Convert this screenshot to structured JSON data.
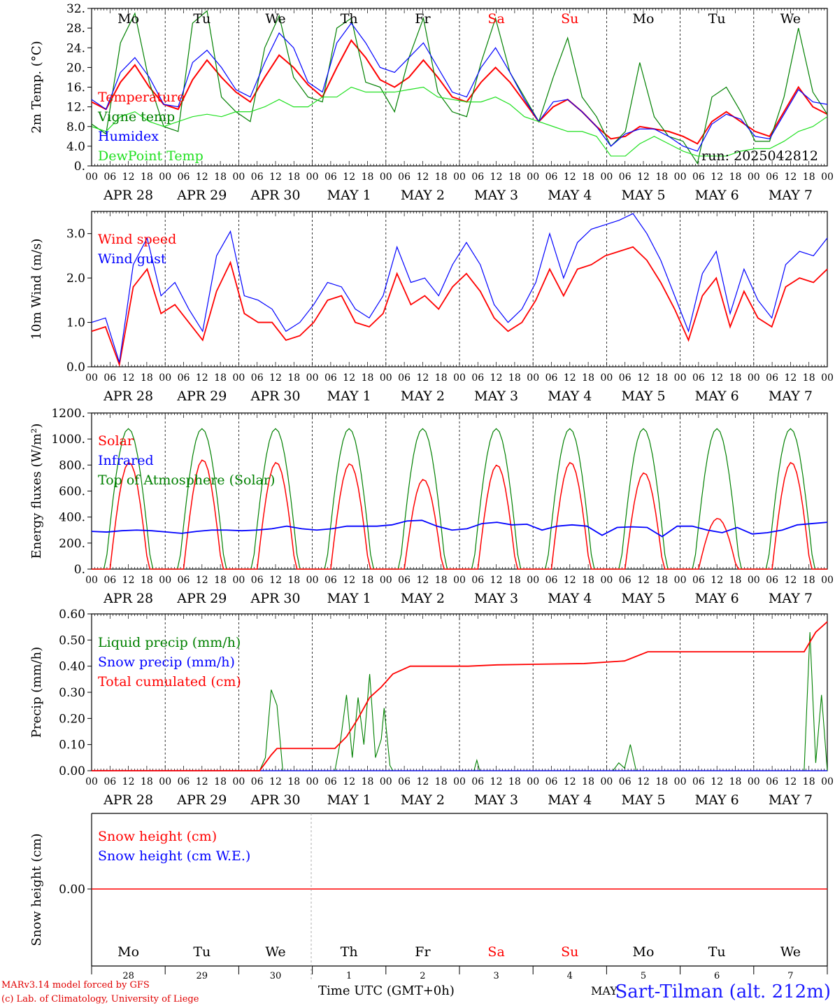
{
  "footer": {
    "model_line": "MARv3.14 model forced by GFS",
    "lab_line": "(c) Lab. of Climatology, University of Liege",
    "time_label": "Time UTC (GMT+0h)",
    "station": "Sart-Tilman (alt. 212m)",
    "month": "MAY"
  },
  "colors": {
    "red": "#ff0000",
    "green": "#008000",
    "blue": "#0000ff",
    "lightgreen": "#20e020",
    "weekend": "#ff0000"
  },
  "chart_data": [
    {
      "id": "temp",
      "type": "line",
      "ylabel": "2m Temp. (°C)",
      "ylim": [
        0,
        32
      ],
      "yticks": [
        "0.",
        "4.0",
        "8.0",
        "12.",
        "16.",
        "20.",
        "24.",
        "28.",
        "32."
      ],
      "days_top": [
        "Mo",
        "Tu",
        "We",
        "Th",
        "Fr",
        "Sa",
        "Su",
        "Mo",
        "Tu",
        "We"
      ],
      "weekend_days": [
        5,
        6
      ],
      "run_label": "run: 2025042812",
      "x_hour_ticks": [
        "00",
        "06",
        "12",
        "18"
      ],
      "date_labels": [
        "APR 28",
        "APR 29",
        "APR 30",
        "MAY  1",
        "MAY  2",
        "MAY  3",
        "MAY  4",
        "MAY  5",
        "MAY  6",
        "MAY  7"
      ],
      "legend": [
        "Temperature",
        "Vigne temp",
        "Humidex",
        "DewPoint Temp"
      ],
      "x_hours_step": 6,
      "series": [
        {
          "name": "Temperature",
          "color": "red",
          "values": [
            13,
            11.5,
            17,
            20.5,
            16,
            12.5,
            11.5,
            17.5,
            21.5,
            18,
            15,
            13,
            18,
            22.5,
            20,
            16.5,
            14,
            20,
            25.5,
            22,
            17.5,
            16,
            18,
            21.5,
            18,
            14,
            13,
            17,
            20,
            17,
            13,
            9,
            12,
            13.5,
            11,
            8,
            5.5,
            6,
            8,
            7.5,
            7,
            6,
            4.5,
            9,
            11,
            9,
            7,
            6,
            11,
            16,
            12,
            10.5
          ]
        },
        {
          "name": "Vigne temp",
          "color": "green",
          "values": [
            8.5,
            6.5,
            25,
            31,
            17,
            8,
            7,
            29,
            31.5,
            14,
            11,
            9,
            24,
            30.5,
            18,
            14,
            13,
            28,
            30,
            17,
            16,
            11,
            22,
            30,
            15,
            11,
            10,
            21,
            30,
            19,
            14,
            9,
            18,
            26,
            14,
            10,
            4,
            7,
            21,
            10,
            6,
            5,
            0.5,
            14,
            16,
            11,
            5,
            5,
            14,
            28,
            15,
            10.5
          ]
        },
        {
          "name": "Humidex",
          "color": "blue",
          "values": [
            13.5,
            11.5,
            19,
            22,
            18,
            12.5,
            12,
            21,
            23.5,
            20,
            15.5,
            14,
            21,
            27,
            24,
            17,
            15,
            25,
            29,
            25,
            20,
            19,
            22,
            25,
            20,
            15,
            14,
            20,
            24,
            19,
            13.5,
            9,
            13,
            13.5,
            11,
            8,
            4,
            6.5,
            7.5,
            7.5,
            6,
            4,
            3,
            8.5,
            10.5,
            9.5,
            6,
            5.5,
            10.5,
            15.5,
            13,
            12.5
          ]
        },
        {
          "name": "DewPoint Temp",
          "color": "lightgreen",
          "values": [
            8,
            7,
            10,
            11,
            9,
            8,
            9,
            10,
            10.5,
            10,
            11,
            11,
            12,
            13.5,
            12,
            12,
            14,
            14,
            16,
            15,
            15,
            15,
            15.5,
            16,
            14,
            13.5,
            13,
            13,
            14,
            12.5,
            10,
            9,
            8,
            7,
            7,
            6,
            2,
            2,
            4.5,
            6,
            4.5,
            3,
            2,
            2,
            2,
            3,
            3.5,
            3.5,
            5,
            7,
            8,
            10
          ]
        }
      ]
    },
    {
      "id": "wind",
      "type": "line",
      "ylabel": "10m Wind (m/s)",
      "ylim": [
        0,
        3.5
      ],
      "yticks": [
        "0.0",
        "1.0",
        "2.0",
        "3.0"
      ],
      "x_hour_ticks": [
        "00",
        "06",
        "12",
        "18"
      ],
      "date_labels": [
        "APR 28",
        "APR 29",
        "APR 30",
        "MAY  1",
        "MAY  2",
        "MAY  3",
        "MAY  4",
        "MAY  5",
        "MAY  6",
        "MAY  7"
      ],
      "legend": [
        "Wind speed",
        "Wind gust"
      ],
      "x_hours_step": 6,
      "series": [
        {
          "name": "Wind speed",
          "color": "red",
          "values": [
            0.8,
            0.9,
            0.05,
            1.8,
            2.2,
            1.2,
            1.4,
            1.0,
            0.6,
            1.7,
            2.35,
            1.2,
            1.0,
            1.0,
            0.6,
            0.7,
            1.0,
            1.5,
            1.6,
            1.0,
            0.9,
            1.2,
            2.1,
            1.4,
            1.6,
            1.3,
            1.8,
            2.1,
            1.7,
            1.1,
            0.8,
            1.0,
            1.5,
            2.2,
            1.6,
            2.2,
            2.3,
            2.5,
            2.6,
            2.7,
            2.4,
            1.9,
            1.3,
            0.6,
            1.6,
            2.0,
            0.9,
            1.7,
            1.1,
            0.9,
            1.8,
            2.0,
            1.9,
            2.2
          ]
        },
        {
          "name": "Wind gust",
          "color": "blue",
          "values": [
            1.0,
            1.1,
            0.1,
            2.3,
            2.9,
            1.6,
            1.9,
            1.3,
            0.8,
            2.5,
            3.05,
            1.6,
            1.5,
            1.3,
            0.8,
            1.0,
            1.4,
            1.9,
            1.8,
            1.3,
            1.1,
            1.6,
            2.7,
            1.9,
            2.0,
            1.6,
            2.3,
            2.8,
            2.3,
            1.4,
            1.0,
            1.3,
            1.9,
            3.0,
            2.0,
            2.8,
            3.1,
            3.2,
            3.3,
            3.45,
            3.0,
            2.4,
            1.6,
            0.8,
            2.1,
            2.6,
            1.2,
            2.2,
            1.5,
            1.1,
            2.3,
            2.6,
            2.5,
            2.9
          ]
        }
      ]
    },
    {
      "id": "energy",
      "type": "line",
      "ylabel": "Energy fluxes (W/m²)",
      "ylim": [
        0,
        1200
      ],
      "yticks": [
        "0.",
        "200.",
        "400.",
        "600.",
        "800.",
        "1000.",
        "1200."
      ],
      "x_hour_ticks": [
        "00",
        "06",
        "12",
        "18"
      ],
      "date_labels": [
        "APR 28",
        "APR 29",
        "APR 30",
        "MAY  1",
        "MAY  2",
        "MAY  3",
        "MAY  4",
        "MAY  5",
        "MAY  6",
        "MAY  7"
      ],
      "legend": [
        "Solar",
        "Infrared",
        "Top of Atmosphere (Solar)"
      ],
      "solar_peaks": [
        820,
        840,
        820,
        810,
        690,
        800,
        820,
        740,
        390,
        820
      ],
      "toa_peak": 1080,
      "infrared_values": [
        290,
        285,
        295,
        300,
        295,
        285,
        275,
        290,
        300,
        300,
        295,
        300,
        310,
        330,
        310,
        300,
        310,
        330,
        330,
        330,
        340,
        370,
        375,
        330,
        300,
        310,
        350,
        360,
        340,
        345,
        300,
        330,
        340,
        330,
        260,
        320,
        325,
        320,
        250,
        330,
        330,
        300,
        280,
        320,
        270,
        280,
        300,
        340,
        350,
        360
      ]
    },
    {
      "id": "precip",
      "type": "line",
      "ylabel": "Precip (mm/h)",
      "ylim": [
        0,
        0.6
      ],
      "yticks": [
        "0.00",
        "0.10",
        "0.20",
        "0.30",
        "0.40",
        "0.50",
        "0.60"
      ],
      "x_hour_ticks": [
        "00",
        "06",
        "12",
        "18"
      ],
      "date_labels": [
        "APR 28",
        "APR 29",
        "APR 30",
        "MAY  1",
        "MAY  2",
        "MAY  3",
        "MAY  4",
        "MAY  5",
        "MAY  6",
        "MAY  7"
      ],
      "legend": [
        "Liquid precip (mm/h)",
        "Snow precip (mm/h)",
        "Total cumulated (cm)"
      ],
      "liquid_points": [
        [
          0,
          0
        ],
        [
          58,
          0
        ],
        [
          60,
          0.05
        ],
        [
          62,
          0.31
        ],
        [
          64,
          0.25
        ],
        [
          66,
          0
        ],
        [
          84,
          0
        ],
        [
          86,
          0.12
        ],
        [
          88,
          0.29
        ],
        [
          90,
          0.05
        ],
        [
          92,
          0.28
        ],
        [
          94,
          0.1
        ],
        [
          96,
          0.37
        ],
        [
          98,
          0.05
        ],
        [
          100,
          0.12
        ],
        [
          101,
          0.24
        ],
        [
          103,
          0.02
        ],
        [
          104,
          0
        ],
        [
          132,
          0
        ],
        [
          133,
          0.04
        ],
        [
          134,
          0
        ],
        [
          180,
          0
        ],
        [
          182,
          0.03
        ],
        [
          184,
          0.01
        ],
        [
          186,
          0.1
        ],
        [
          188,
          0
        ],
        [
          246,
          0
        ],
        [
          248,
          0.53
        ],
        [
          250,
          0.03
        ],
        [
          252,
          0.29
        ],
        [
          254,
          0
        ]
      ],
      "cumul_points": [
        [
          0,
          0
        ],
        [
          58,
          0
        ],
        [
          62,
          0.06
        ],
        [
          64,
          0.085
        ],
        [
          84,
          0.085
        ],
        [
          88,
          0.13
        ],
        [
          92,
          0.2
        ],
        [
          96,
          0.28
        ],
        [
          100,
          0.32
        ],
        [
          104,
          0.37
        ],
        [
          110,
          0.4
        ],
        [
          130,
          0.4
        ],
        [
          140,
          0.405
        ],
        [
          170,
          0.41
        ],
        [
          184,
          0.42
        ],
        [
          192,
          0.455
        ],
        [
          246,
          0.455
        ],
        [
          250,
          0.53
        ],
        [
          254,
          0.57
        ]
      ]
    },
    {
      "id": "snow",
      "type": "line",
      "ylabel": "Snow height (cm)",
      "ytick": "0.00",
      "legend": [
        "Snow height (cm)",
        "Snow height (cm W.E.)"
      ],
      "days_bottom": [
        "Mo",
        "Tu",
        "We",
        "Th",
        "Fr",
        "Sa",
        "Su",
        "Mo",
        "Tu",
        "We"
      ],
      "weekend_days": [
        5,
        6
      ],
      "day_numbers": [
        "28",
        "29",
        "30",
        "1",
        "2",
        "3",
        "4",
        "5",
        "6",
        "7"
      ]
    }
  ]
}
